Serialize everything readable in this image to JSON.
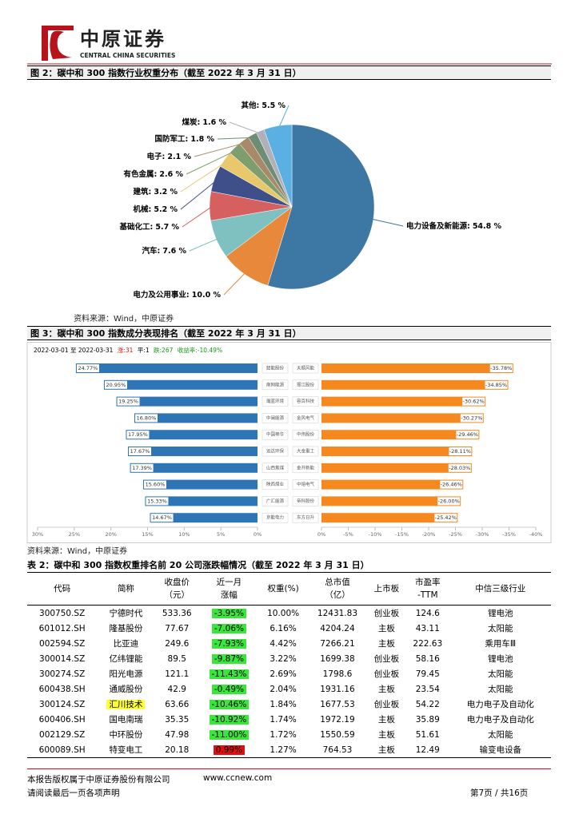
{
  "header": {
    "logo_cn": "中原证券",
    "logo_en": "CENTRAL CHINA SECURITIES"
  },
  "figure2": {
    "title": "图 2：碳中和 300 指数行业权重分布（截至 2022 年 3 月 31 日）",
    "source": "资料来源：Wind，中原证券"
  },
  "figure3": {
    "title": "图 3：碳中和 300 指数成分表现排名（截至 2022 年 3 月 31 日）",
    "source": "资料来源：Wind，中原证券",
    "summary": {
      "date_range": "2022-03-01 至 2022-03-31",
      "up": "涨:31",
      "flat": "平:1",
      "down": "跌:267",
      "return": "收益率:-10.49%"
    }
  },
  "chart_data": [
    {
      "type": "pie",
      "categories": [
        "电力设备及新能源:",
        "电力及公用事业:",
        "汽车:",
        "基础化工:",
        "机械:",
        "建筑:",
        "有色金属:",
        "电子:",
        "国防军工:",
        "煤炭:",
        "其他:"
      ],
      "values": [
        54.8,
        10.0,
        7.6,
        5.7,
        5.2,
        3.2,
        2.6,
        2.1,
        1.8,
        1.6,
        5.5
      ],
      "value_labels": [
        "54.8 %",
        "10.0 %",
        "7.6 %",
        "5.7 %",
        "5.2 %",
        "3.2 %",
        "2.6 %",
        "2.1 %",
        "1.8 %",
        "1.6 %",
        "5.5 %"
      ],
      "colors": [
        "#3d77a3",
        "#e8883a",
        "#7fc1c1",
        "#d65f5f",
        "#3f4f8a",
        "#e9c76b",
        "#7f9e6e",
        "#a88a6a",
        "#6f8d74",
        "#b0b0b8",
        "#5aafe3"
      ]
    },
    {
      "type": "bar",
      "orientation": "horizontal",
      "color": "#2e75b6",
      "categories": [
        "韶能股份",
        "南网能源",
        "瀚蓝环境",
        "中闽能源",
        "中国神华",
        "远达环保",
        "山西焦煤",
        "陕西煤业",
        "广汇能源",
        "京能电力"
      ],
      "values": [
        24.77,
        20.95,
        19.25,
        16.8,
        17.95,
        17.67,
        17.39,
        15.6,
        15.33,
        14.67
      ],
      "value_labels": [
        "24.77%",
        "20.95%",
        "19.25%",
        "16.80%",
        "17.95%",
        "17.67%",
        "17.39%",
        "15.60%",
        "15.33%",
        "14.67%"
      ],
      "xlim": [
        30,
        0
      ],
      "xticks": [
        {
          "value": 30,
          "label": "30%"
        },
        {
          "value": 25,
          "label": "25%"
        },
        {
          "value": 20,
          "label": "20%"
        },
        {
          "value": 15,
          "label": "15%"
        },
        {
          "value": 10,
          "label": "10%"
        },
        {
          "value": 5,
          "label": "5%"
        },
        {
          "value": 0,
          "label": "0%"
        }
      ]
    },
    {
      "type": "bar",
      "orientation": "horizontal",
      "color": "#f5891f",
      "categories": [
        "天顺风能",
        "振江股份",
        "容百科技",
        "金风电气",
        "中伟股份",
        "大金重工",
        "金开新能",
        "中熔电气",
        "帝科股份",
        "东方日升"
      ],
      "values": [
        -35.78,
        -34.85,
        -30.62,
        -30.27,
        -29.46,
        -28.11,
        -28.03,
        -26.46,
        -26.0,
        -25.42
      ],
      "value_labels": [
        "-35.78%",
        "-34.85%",
        "-30.62%",
        "-30.27%",
        "-29.46%",
        "-28.11%",
        "-28.03%",
        "-26.46%",
        "-26.00%",
        "-25.42%"
      ],
      "xlim": [
        0,
        -40
      ],
      "xticks": [
        {
          "value": 0,
          "label": "0%"
        },
        {
          "value": -5,
          "label": "-5%"
        },
        {
          "value": -10,
          "label": "-10%"
        },
        {
          "value": -15,
          "label": "-15%"
        },
        {
          "value": -20,
          "label": "-20%"
        },
        {
          "value": -25,
          "label": "-25%"
        },
        {
          "value": -30,
          "label": "-30%"
        },
        {
          "value": -35,
          "label": "-35%"
        },
        {
          "value": -40,
          "label": "-40%"
        }
      ]
    }
  ],
  "table": {
    "title": "表 2：碳中和 300 指数权重排名前 20 公司涨跌幅情况（截至 2022 年 3 月 31 日）",
    "header": [
      [
        "代码"
      ],
      [
        "简称"
      ],
      [
        "收盘价",
        "（元）"
      ],
      [
        "近一月",
        "涨幅"
      ],
      [
        "权重(%)"
      ],
      [
        "总市值",
        "（亿）"
      ],
      [
        "上市板"
      ],
      [
        "市盈率",
        "-TTM"
      ],
      [
        "中信三级行业"
      ]
    ],
    "rows": [
      [
        "300750.SZ",
        "宁德时代",
        "533.36",
        "-3.95%",
        "10.00%",
        "12431.83",
        "创业板",
        "124.6",
        "锂电池"
      ],
      [
        "601012.SH",
        "隆基股份",
        "77.67",
        "-7.06%",
        "6.16%",
        "4204.24",
        "主板",
        "43.11",
        "太阳能"
      ],
      [
        "002594.SZ",
        "比亚迪",
        "249.6",
        "-7.93%",
        "4.42%",
        "7266.21",
        "主板",
        "222.63",
        "乘用车Ⅲ"
      ],
      [
        "300014.SZ",
        "亿纬锂能",
        "89.5",
        "-9.87%",
        "3.22%",
        "1699.38",
        "创业板",
        "58.16",
        "锂电池"
      ],
      [
        "300274.SZ",
        "阳光电源",
        "121.1",
        "-11.43%",
        "2.69%",
        "1798.6",
        "创业板",
        "79.45",
        "太阳能"
      ],
      [
        "600438.SH",
        "通威股份",
        "42.9",
        "-0.49%",
        "2.04%",
        "1931.16",
        "主板",
        "23.54",
        "太阳能"
      ],
      [
        "300124.SZ",
        "汇川技术",
        "63.66",
        "-10.46%",
        "1.84%",
        "1677.53",
        "创业板",
        "54.22",
        "电力电子及自动化"
      ],
      [
        "600406.SH",
        "国电南瑞",
        "35.35",
        "-10.92%",
        "1.74%",
        "1972.19",
        "主板",
        "35.89",
        "电力电子及自动化"
      ],
      [
        "002129.SZ",
        "中环股份",
        "47.98",
        "-11.00%",
        "1.72%",
        "1550.59",
        "主板",
        "51.61",
        "太阳能"
      ],
      [
        "600089.SH",
        "特变电工",
        "20.18",
        "0.99%",
        "1.27%",
        "764.53",
        "主板",
        "12.49",
        "输变电设备"
      ]
    ]
  },
  "footer": {
    "copyright": "本报告版权属于中原证券股份有限公司",
    "website": "www.ccnew.com",
    "notice": "请阅读最后一页各项声明",
    "page": "第7页 / 共16页"
  }
}
